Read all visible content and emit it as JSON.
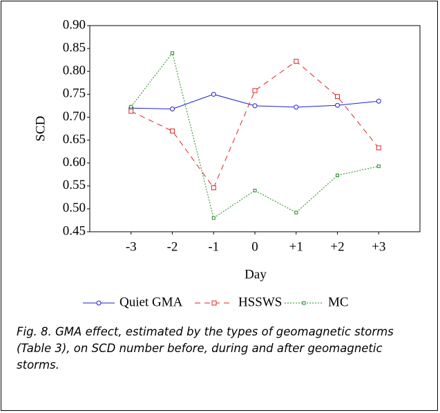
{
  "chart_data": {
    "type": "line",
    "x_label": "Day",
    "y_label": "SCD",
    "categories": [
      "-3",
      "-2",
      "-1",
      "0",
      "+1",
      "+2",
      "+3"
    ],
    "series": [
      {
        "name": "Quiet GMA",
        "color": "#1f1fcc",
        "marker": "circle",
        "dash": "solid",
        "values": [
          0.72,
          0.718,
          0.75,
          0.725,
          0.722,
          0.726,
          0.735
        ]
      },
      {
        "name": "HSSWS",
        "color": "#e02020",
        "marker": "square",
        "dash": "dashed",
        "values": [
          0.713,
          0.67,
          0.546,
          0.758,
          0.822,
          0.745,
          0.633
        ]
      },
      {
        "name": "MC",
        "color": "#1a8a1a",
        "marker": "small-square",
        "dash": "dotted",
        "values": [
          0.723,
          0.84,
          0.48,
          0.54,
          0.492,
          0.573,
          0.593
        ]
      }
    ],
    "ylim": [
      0.45,
      0.9
    ],
    "yticks": [
      {
        "value": 0.45,
        "label": "0.45"
      },
      {
        "value": 0.5,
        "label": "0.50"
      },
      {
        "value": 0.55,
        "label": "0.55"
      },
      {
        "value": 0.6,
        "label": "0.60"
      },
      {
        "value": 0.65,
        "label": "0.65"
      },
      {
        "value": 0.7,
        "label": "0.70"
      },
      {
        "value": 0.75,
        "label": "0.75"
      },
      {
        "value": 0.8,
        "label": "0.80"
      },
      {
        "value": 0.85,
        "label": "0.85"
      },
      {
        "value": 0.9,
        "label": "0.90"
      }
    ],
    "grid": false,
    "legend": "bottom"
  },
  "caption": "Fig. 8. GMA effect, estimated by the types of geomagnetic storms (Table 3), on SCD number before, during and after geomagnetic storms."
}
